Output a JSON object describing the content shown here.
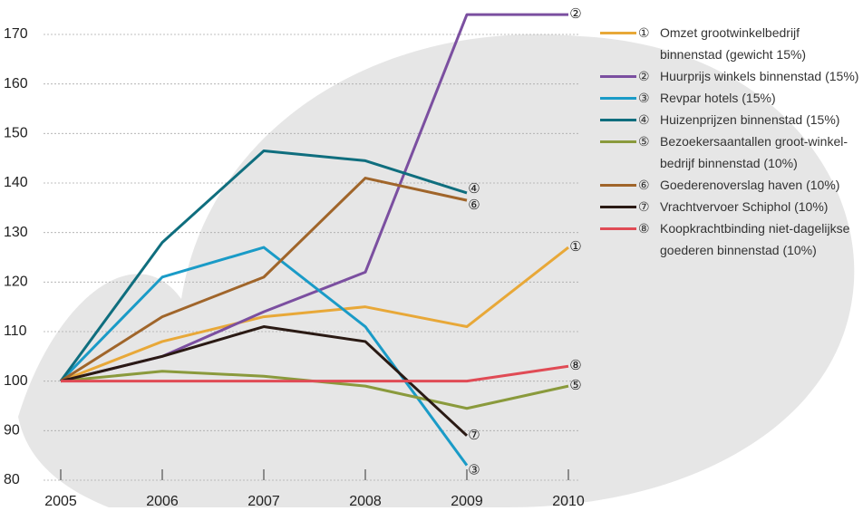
{
  "chart_data": {
    "type": "line",
    "x": [
      2005,
      2006,
      2007,
      2008,
      2009,
      2010
    ],
    "xlim": [
      2005,
      2010
    ],
    "xticks": [
      2005,
      2006,
      2007,
      2008,
      2009,
      2010
    ],
    "ylim": [
      80,
      170
    ],
    "yticks": [
      80,
      90,
      100,
      110,
      120,
      130,
      140,
      150,
      160,
      170
    ],
    "grid": true,
    "series": [
      {
        "marker": "①",
        "name": "Omzet grootwinkelbedrijf binnenstad (gewicht 15%)",
        "color": "#e8a838",
        "values": [
          100,
          108,
          113,
          115,
          111,
          127
        ]
      },
      {
        "marker": "②",
        "name": "Huurprijs winkels binnenstad (15%)",
        "color": "#7b4fa0",
        "values": [
          100,
          105,
          114,
          122,
          174,
          174
        ]
      },
      {
        "marker": "③",
        "name": "Revpar hotels (15%)",
        "color": "#1a9bc7",
        "values": [
          100,
          121,
          127,
          111,
          83,
          null
        ]
      },
      {
        "marker": "④",
        "name": "Huizenprijzen binnenstad (15%)",
        "color": "#0f6e7e",
        "values": [
          100,
          128,
          146.5,
          144.5,
          138,
          null
        ]
      },
      {
        "marker": "⑤",
        "name": "Bezoekersaantallen groot-winkel-bedrijf binnenstad (10%)",
        "color": "#8a9a3c",
        "values": [
          100,
          102,
          101,
          99,
          94.5,
          99
        ]
      },
      {
        "marker": "⑥",
        "name": "Goederenoverslag haven (10%)",
        "color": "#a0652a",
        "values": [
          100,
          113,
          121,
          141,
          136.5,
          null
        ]
      },
      {
        "marker": "⑦",
        "name": "Vrachtvervoer Schiphol (10%)",
        "color": "#2a1a14",
        "values": [
          100,
          105,
          111,
          108,
          89,
          null
        ]
      },
      {
        "marker": "⑧",
        "name": "Koopkrachtbinding niet-dagelijkse goederen binnenstad (10%)",
        "color": "#e04b55",
        "values": [
          100,
          100,
          100,
          100,
          100,
          103
        ]
      }
    ]
  }
}
